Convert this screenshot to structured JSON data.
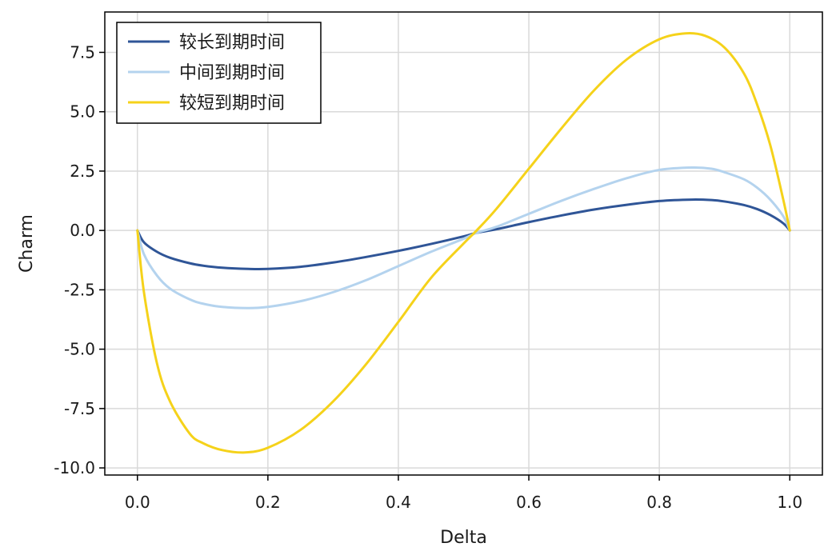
{
  "chart_data": {
    "type": "line",
    "title": "",
    "xlabel": "Delta",
    "ylabel": "Charm",
    "xlim": [
      -0.05,
      1.05
    ],
    "ylim": [
      -10.3,
      9.2
    ],
    "xticks": [
      0.0,
      0.2,
      0.4,
      0.6,
      0.8,
      1.0
    ],
    "xtick_labels": [
      "0.0",
      "0.2",
      "0.4",
      "0.6",
      "0.8",
      "1.0"
    ],
    "yticks": [
      -10.0,
      -7.5,
      -5.0,
      -2.5,
      0.0,
      2.5,
      5.0,
      7.5
    ],
    "ytick_labels": [
      "-10.0",
      "-7.5",
      "-5.0",
      "-2.5",
      "0.0",
      "2.5",
      "5.0",
      "7.5"
    ],
    "grid": true,
    "legend_position": "top-left",
    "series": [
      {
        "name": "较长到期时间",
        "color": "#2f5597",
        "x": [
          0.0,
          0.01,
          0.03,
          0.05,
          0.08,
          0.1,
          0.13,
          0.17,
          0.2,
          0.25,
          0.3,
          0.35,
          0.4,
          0.45,
          0.5,
          0.52,
          0.55,
          0.6,
          0.65,
          0.7,
          0.75,
          0.8,
          0.85,
          0.88,
          0.9,
          0.93,
          0.95,
          0.97,
          0.99,
          1.0
        ],
        "y": [
          0.0,
          -0.5,
          -0.9,
          -1.15,
          -1.38,
          -1.48,
          -1.57,
          -1.62,
          -1.62,
          -1.53,
          -1.35,
          -1.12,
          -0.86,
          -0.57,
          -0.25,
          -0.1,
          0.05,
          0.35,
          0.63,
          0.88,
          1.08,
          1.24,
          1.3,
          1.28,
          1.22,
          1.07,
          0.9,
          0.65,
          0.3,
          0.0
        ]
      },
      {
        "name": "中间到期时间",
        "color": "#b4d3ee",
        "x": [
          0.0,
          0.01,
          0.03,
          0.05,
          0.08,
          0.1,
          0.13,
          0.17,
          0.2,
          0.25,
          0.3,
          0.35,
          0.4,
          0.45,
          0.5,
          0.52,
          0.55,
          0.6,
          0.65,
          0.7,
          0.75,
          0.8,
          0.85,
          0.88,
          0.9,
          0.93,
          0.95,
          0.97,
          0.99,
          1.0
        ],
        "y": [
          0.0,
          -1.0,
          -1.9,
          -2.45,
          -2.9,
          -3.08,
          -3.22,
          -3.27,
          -3.22,
          -2.98,
          -2.6,
          -2.1,
          -1.5,
          -0.9,
          -0.35,
          -0.1,
          0.15,
          0.7,
          1.25,
          1.75,
          2.2,
          2.55,
          2.65,
          2.6,
          2.45,
          2.15,
          1.8,
          1.3,
          0.6,
          0.0
        ]
      },
      {
        "name": "较短到期时间",
        "color": "#f5d21a",
        "x": [
          0.0,
          0.01,
          0.03,
          0.05,
          0.08,
          0.1,
          0.13,
          0.165,
          0.2,
          0.25,
          0.3,
          0.35,
          0.4,
          0.45,
          0.5,
          0.52,
          0.55,
          0.6,
          0.65,
          0.7,
          0.75,
          0.8,
          0.84,
          0.87,
          0.9,
          0.93,
          0.95,
          0.97,
          0.99,
          1.0
        ],
        "y": [
          0.0,
          -2.6,
          -5.6,
          -7.2,
          -8.55,
          -8.95,
          -9.25,
          -9.35,
          -9.15,
          -8.4,
          -7.2,
          -5.65,
          -3.85,
          -2.0,
          -0.55,
          0.0,
          0.9,
          2.6,
          4.3,
          5.9,
          7.2,
          8.05,
          8.3,
          8.2,
          7.7,
          6.6,
          5.3,
          3.6,
          1.3,
          0.0
        ]
      }
    ]
  }
}
